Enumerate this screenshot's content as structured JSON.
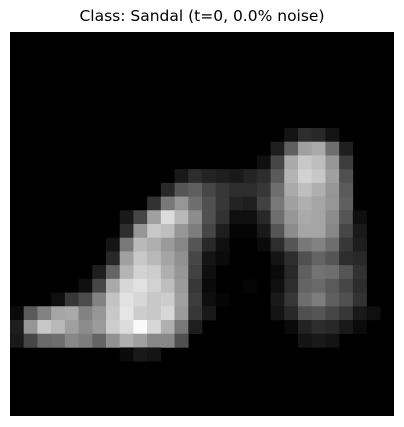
{
  "figure": {
    "title": "Class: Sandal (t=0, 0.0% noise)"
  },
  "image": {
    "grid_size": 28,
    "pixels": [
      [
        0,
        0,
        0,
        0,
        0,
        0,
        0,
        0,
        0,
        0,
        0,
        0,
        0,
        0,
        0,
        0,
        0,
        0,
        0,
        0,
        0,
        0,
        0,
        0,
        0,
        0,
        0,
        0
      ],
      [
        0,
        0,
        0,
        0,
        0,
        0,
        0,
        0,
        0,
        0,
        0,
        0,
        0,
        0,
        0,
        0,
        0,
        0,
        0,
        0,
        0,
        0,
        0,
        0,
        0,
        0,
        0,
        0
      ],
      [
        0,
        0,
        0,
        0,
        0,
        0,
        0,
        0,
        0,
        0,
        0,
        0,
        0,
        0,
        0,
        0,
        0,
        0,
        0,
        0,
        0,
        0,
        0,
        0,
        0,
        0,
        0,
        0
      ],
      [
        0,
        0,
        0,
        0,
        0,
        0,
        0,
        0,
        0,
        0,
        0,
        0,
        0,
        0,
        0,
        0,
        0,
        0,
        0,
        0,
        0,
        0,
        0,
        0,
        0,
        0,
        0,
        0
      ],
      [
        0,
        0,
        0,
        0,
        0,
        0,
        0,
        0,
        0,
        0,
        0,
        0,
        0,
        0,
        0,
        0,
        0,
        0,
        0,
        0,
        0,
        0,
        0,
        0,
        0,
        0,
        0,
        0
      ],
      [
        0,
        0,
        0,
        0,
        0,
        0,
        0,
        0,
        0,
        0,
        0,
        0,
        0,
        0,
        0,
        0,
        0,
        0,
        0,
        0,
        0,
        0,
        0,
        0,
        0,
        0,
        0,
        0
      ],
      [
        0,
        0,
        0,
        0,
        0,
        0,
        0,
        0,
        0,
        0,
        0,
        0,
        0,
        0,
        0,
        0,
        0,
        0,
        0,
        0,
        0,
        0,
        0,
        0,
        0,
        0,
        0,
        0
      ],
      [
        0,
        0,
        0,
        0,
        0,
        0,
        0,
        0,
        0,
        0,
        0,
        0,
        0,
        0,
        0,
        0,
        0,
        0,
        0,
        0,
        20,
        45,
        40,
        20,
        0,
        0,
        0,
        0
      ],
      [
        0,
        0,
        0,
        0,
        0,
        0,
        0,
        0,
        0,
        0,
        0,
        0,
        0,
        0,
        0,
        0,
        0,
        0,
        0,
        30,
        95,
        160,
        170,
        110,
        30,
        0,
        0,
        0
      ],
      [
        0,
        0,
        0,
        0,
        0,
        0,
        0,
        0,
        0,
        0,
        0,
        0,
        0,
        0,
        0,
        0,
        0,
        0,
        15,
        70,
        170,
        200,
        190,
        150,
        60,
        0,
        0,
        0
      ],
      [
        0,
        0,
        0,
        0,
        0,
        0,
        0,
        0,
        0,
        0,
        0,
        0,
        25,
        45,
        35,
        30,
        25,
        35,
        45,
        90,
        180,
        210,
        200,
        160,
        80,
        0,
        0,
        0
      ],
      [
        0,
        0,
        0,
        0,
        0,
        0,
        0,
        0,
        0,
        0,
        0,
        40,
        85,
        95,
        70,
        55,
        45,
        45,
        55,
        110,
        170,
        190,
        175,
        150,
        90,
        0,
        0,
        0
      ],
      [
        0,
        0,
        0,
        0,
        0,
        0,
        0,
        0,
        0,
        0,
        50,
        120,
        150,
        110,
        80,
        55,
        35,
        30,
        65,
        120,
        160,
        175,
        165,
        150,
        95,
        0,
        0,
        0
      ],
      [
        0,
        0,
        0,
        0,
        0,
        0,
        0,
        0,
        25,
        70,
        160,
        220,
        185,
        140,
        80,
        50,
        15,
        15,
        40,
        110,
        150,
        170,
        165,
        140,
        85,
        15,
        0,
        0
      ],
      [
        0,
        0,
        0,
        0,
        0,
        0,
        0,
        0,
        45,
        150,
        200,
        190,
        150,
        125,
        70,
        30,
        5,
        5,
        25,
        85,
        140,
        165,
        165,
        135,
        70,
        25,
        0,
        0
      ],
      [
        0,
        0,
        0,
        0,
        0,
        0,
        0,
        20,
        120,
        185,
        175,
        155,
        135,
        85,
        40,
        15,
        0,
        0,
        10,
        45,
        85,
        120,
        130,
        110,
        55,
        30,
        0,
        0
      ],
      [
        0,
        0,
        0,
        0,
        0,
        0,
        0,
        40,
        160,
        200,
        185,
        165,
        145,
        70,
        20,
        10,
        0,
        0,
        0,
        20,
        45,
        80,
        100,
        85,
        45,
        40,
        0,
        0
      ],
      [
        0,
        0,
        0,
        0,
        0,
        0,
        30,
        100,
        180,
        210,
        205,
        175,
        150,
        65,
        15,
        0,
        0,
        0,
        0,
        10,
        40,
        95,
        115,
        110,
        85,
        50,
        0,
        0
      ],
      [
        0,
        0,
        0,
        0,
        0,
        15,
        70,
        170,
        215,
        225,
        210,
        190,
        155,
        55,
        10,
        0,
        0,
        5,
        0,
        15,
        45,
        100,
        105,
        90,
        70,
        45,
        0,
        0
      ],
      [
        0,
        0,
        0,
        15,
        55,
        75,
        130,
        195,
        225,
        215,
        200,
        205,
        160,
        60,
        15,
        5,
        0,
        0,
        0,
        25,
        55,
        110,
        125,
        95,
        80,
        50,
        0,
        0
      ],
      [
        10,
        90,
        130,
        165,
        170,
        130,
        150,
        200,
        230,
        205,
        200,
        215,
        155,
        55,
        25,
        0,
        0,
        0,
        0,
        20,
        40,
        80,
        85,
        70,
        55,
        25,
        15,
        0
      ],
      [
        30,
        150,
        200,
        185,
        160,
        140,
        155,
        205,
        220,
        250,
        215,
        175,
        120,
        30,
        0,
        0,
        0,
        0,
        0,
        0,
        10,
        35,
        45,
        40,
        25,
        10,
        0,
        0
      ],
      [
        25,
        70,
        105,
        110,
        135,
        125,
        100,
        145,
        175,
        160,
        135,
        135,
        80,
        0,
        0,
        0,
        0,
        0,
        0,
        0,
        0,
        20,
        25,
        20,
        0,
        0,
        0,
        0
      ],
      [
        0,
        0,
        0,
        0,
        0,
        0,
        0,
        0,
        10,
        25,
        20,
        0,
        0,
        0,
        0,
        0,
        0,
        0,
        0,
        0,
        0,
        0,
        0,
        0,
        0,
        0,
        0,
        0
      ],
      [
        0,
        0,
        0,
        0,
        0,
        0,
        0,
        0,
        0,
        0,
        0,
        0,
        0,
        0,
        0,
        0,
        0,
        0,
        0,
        0,
        0,
        0,
        0,
        0,
        0,
        0,
        0,
        0
      ],
      [
        0,
        0,
        0,
        0,
        0,
        0,
        0,
        0,
        0,
        0,
        0,
        0,
        0,
        0,
        0,
        0,
        0,
        0,
        0,
        0,
        0,
        0,
        0,
        0,
        0,
        0,
        0,
        0
      ],
      [
        0,
        0,
        0,
        0,
        0,
        0,
        0,
        0,
        0,
        0,
        0,
        0,
        0,
        0,
        0,
        0,
        0,
        0,
        0,
        0,
        0,
        0,
        0,
        0,
        0,
        0,
        0,
        0
      ],
      [
        0,
        0,
        0,
        0,
        0,
        0,
        0,
        0,
        0,
        0,
        0,
        0,
        0,
        0,
        0,
        0,
        0,
        0,
        0,
        0,
        0,
        0,
        0,
        0,
        0,
        0,
        0,
        0
      ]
    ]
  },
  "colors": {
    "background": "#ffffff",
    "image_background": "#000000",
    "title_text": "#000000"
  }
}
